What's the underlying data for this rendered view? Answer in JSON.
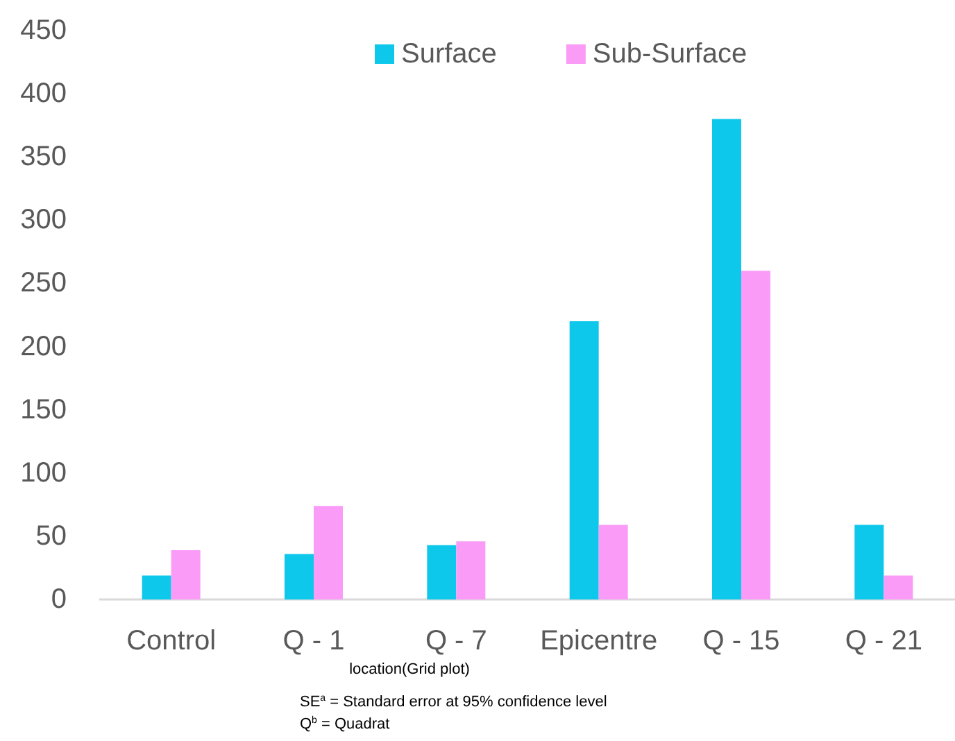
{
  "chart_data": {
    "type": "bar",
    "xlabel": "location(Grid plot)",
    "categories": [
      "Control",
      "Q - 1",
      "Q - 7",
      "Epicentre",
      "Q - 15",
      "Q - 21"
    ],
    "series": [
      {
        "name": "Surface",
        "color": "#0ec8ec",
        "values": [
          19,
          36,
          43,
          220,
          380,
          59
        ]
      },
      {
        "name": "Sub-Surface",
        "color": "#fb9bf8",
        "values": [
          39,
          74,
          46,
          59,
          260,
          19
        ]
      }
    ],
    "ylim": [
      0,
      450
    ],
    "yticks": [
      0,
      50,
      100,
      150,
      200,
      250,
      300,
      350,
      400,
      450
    ],
    "grid": false,
    "legend": "top",
    "annotations": [
      "SE$^{a}$ = Standard error at 95% confidence level",
      "Q$^{b}$ = Quadrat"
    ]
  }
}
